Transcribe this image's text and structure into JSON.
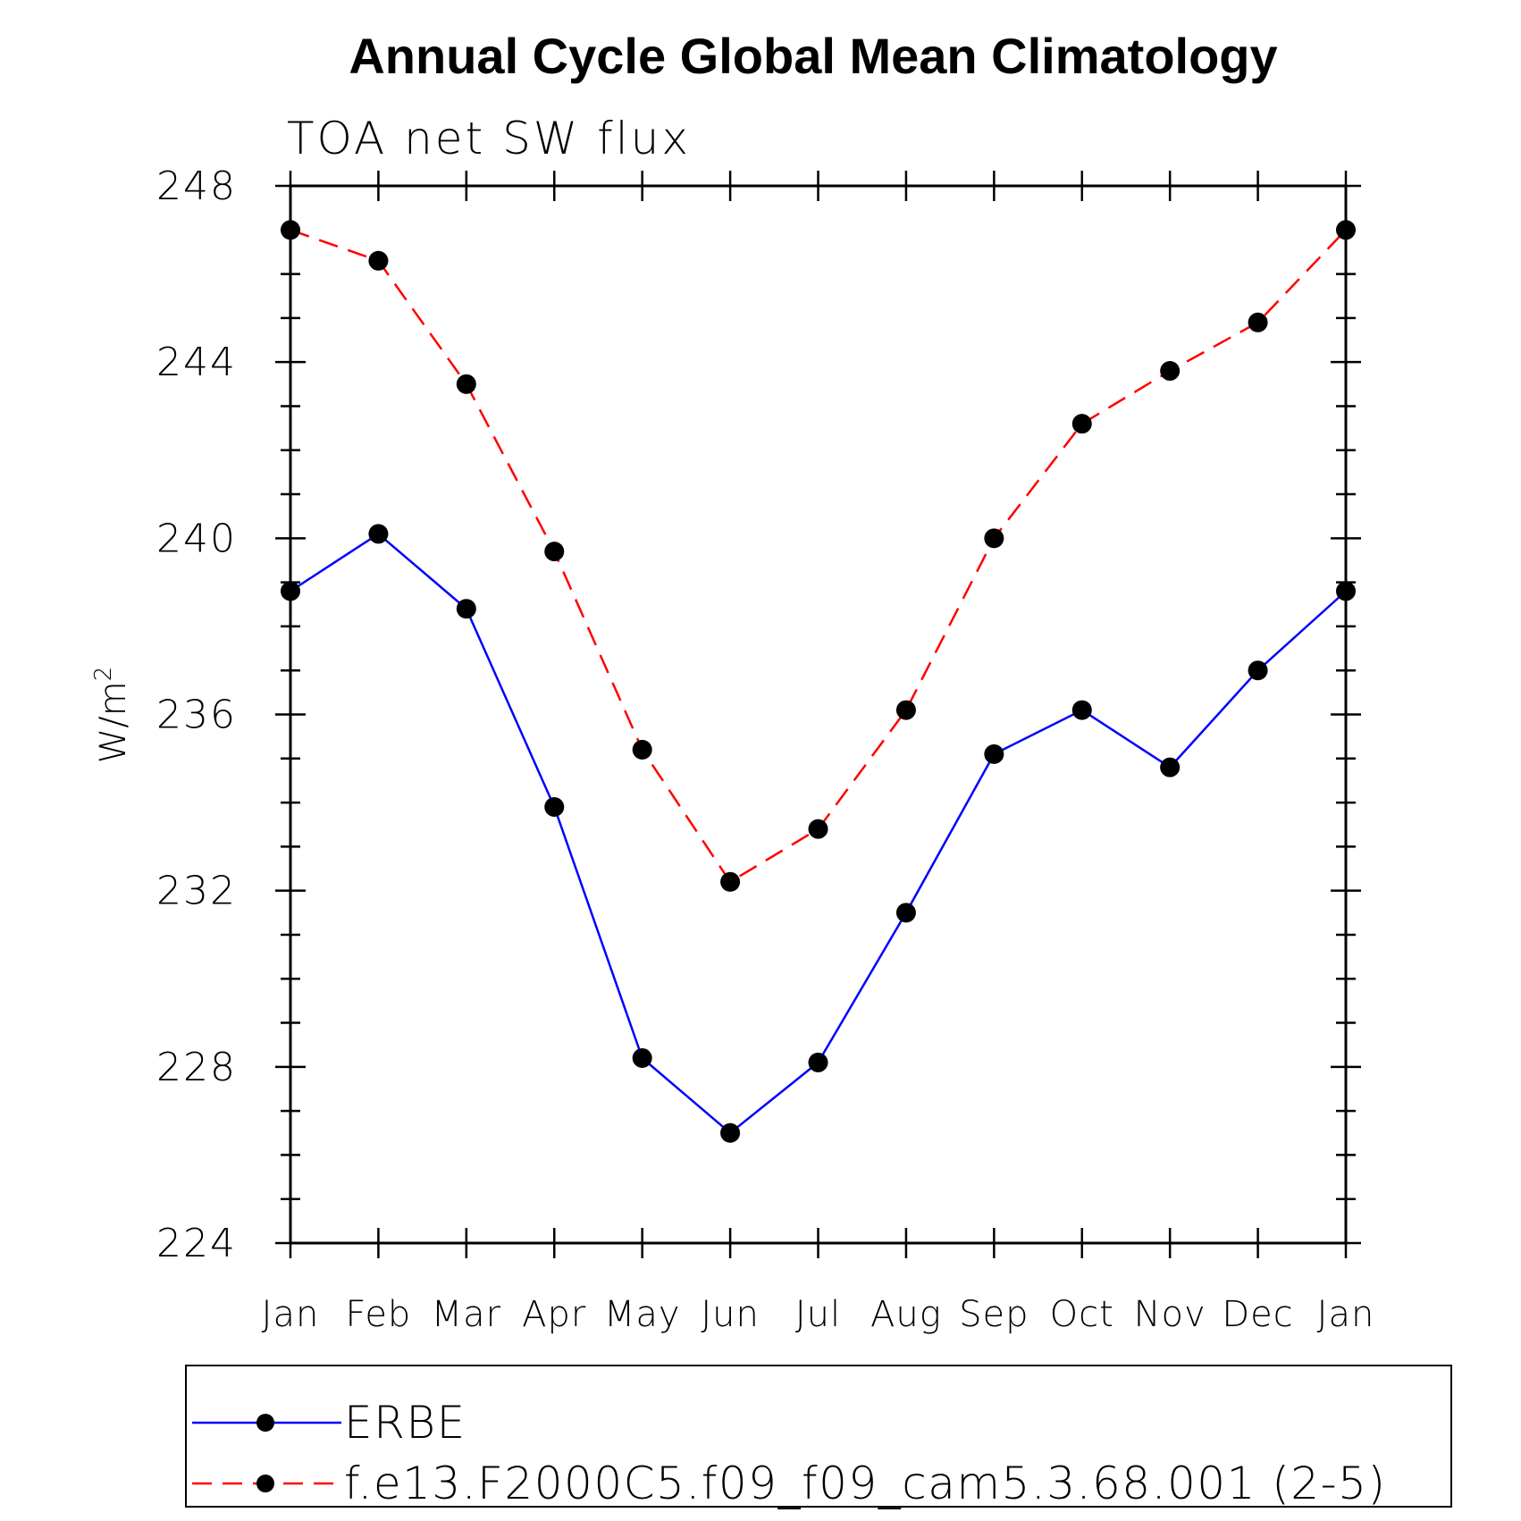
{
  "chart_data": {
    "type": "line",
    "title": "Annual Cycle Global Mean Climatology",
    "subtitle": "TOA net SW flux",
    "xlabel": "",
    "ylabel": "W/m",
    "ylabel_sup": "2",
    "categories": [
      "Jan",
      "Feb",
      "Mar",
      "Apr",
      "May",
      "Jun",
      "Jul",
      "Aug",
      "Sep",
      "Oct",
      "Nov",
      "Dec",
      "Jan"
    ],
    "ylim": [
      224,
      248
    ],
    "yticks": [
      224,
      228,
      232,
      236,
      240,
      244,
      248
    ],
    "yminor_step": 1,
    "grid": false,
    "legend_position": "bottom",
    "series": [
      {
        "name": "ERBE",
        "color": "#0000ff",
        "dash": "solid",
        "marker": "filled-circle",
        "values": [
          238.8,
          240.1,
          238.4,
          233.9,
          228.2,
          226.5,
          228.1,
          231.5,
          235.1,
          236.1,
          234.8,
          237.0,
          238.8
        ]
      },
      {
        "name": "f.e13.F2000C5.f09_f09_cam5.3.68.001 (2-5)",
        "color": "#ff0000",
        "dash": "dashed",
        "marker": "filled-circle",
        "values": [
          247.0,
          246.3,
          243.5,
          239.7,
          235.2,
          232.2,
          233.4,
          236.1,
          240.0,
          242.6,
          243.8,
          244.9,
          247.0
        ]
      }
    ]
  }
}
